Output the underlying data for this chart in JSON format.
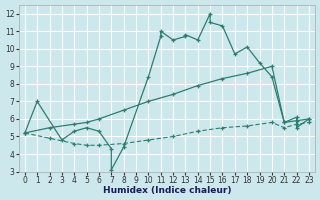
{
  "xlabel": "Humidex (Indice chaleur)",
  "bg_color": "#cce8ed",
  "grid_color": "#ffffff",
  "line_color": "#2e7d6e",
  "xlim": [
    -0.5,
    23.5
  ],
  "ylim": [
    3,
    12.5
  ],
  "xticks": [
    0,
    1,
    2,
    3,
    4,
    5,
    6,
    7,
    8,
    9,
    10,
    11,
    12,
    13,
    14,
    15,
    16,
    17,
    18,
    19,
    20,
    21,
    22,
    23
  ],
  "yticks": [
    3,
    4,
    5,
    6,
    7,
    8,
    9,
    10,
    11,
    12
  ],
  "line1_x": [
    0,
    1,
    3,
    4,
    5,
    6,
    7,
    7,
    8,
    10,
    11,
    11,
    12,
    13,
    13,
    14,
    15,
    15,
    16,
    17,
    18,
    19,
    20,
    21,
    22,
    22,
    23
  ],
  "line1_y": [
    5.2,
    7.0,
    4.8,
    5.3,
    5.5,
    5.3,
    4.3,
    3.1,
    4.4,
    8.4,
    10.7,
    11.0,
    10.5,
    10.7,
    10.8,
    10.5,
    12.0,
    11.5,
    11.3,
    9.7,
    10.1,
    9.2,
    8.4,
    5.8,
    6.1,
    5.5,
    6.0
  ],
  "line2_x": [
    0,
    2,
    4,
    5,
    6,
    8,
    10,
    12,
    14,
    16,
    18,
    20,
    21,
    22,
    23
  ],
  "line2_y": [
    5.2,
    5.5,
    5.7,
    5.8,
    6.0,
    6.5,
    7.0,
    7.4,
    7.9,
    8.3,
    8.6,
    9.0,
    5.8,
    5.9,
    6.0
  ],
  "line3_x": [
    0,
    2,
    4,
    5,
    6,
    8,
    10,
    12,
    14,
    16,
    18,
    20,
    21,
    22,
    23
  ],
  "line3_y": [
    5.2,
    4.9,
    4.6,
    4.5,
    4.5,
    4.6,
    4.8,
    5.0,
    5.3,
    5.5,
    5.6,
    5.8,
    5.5,
    5.7,
    5.8
  ]
}
